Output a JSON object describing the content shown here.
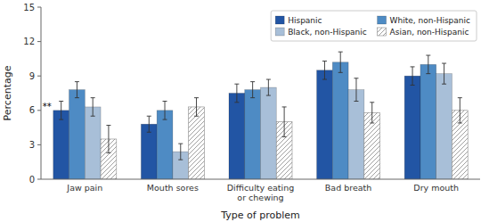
{
  "chart_data": {
    "type": "bar",
    "categories": [
      "Jaw pain",
      "Mouth sores",
      "Difficulty eating\nor chewing",
      "Bad breath",
      "Dry mouth"
    ],
    "series": [
      {
        "name": "Hispanic",
        "color": "#2255a4",
        "values": [
          6.0,
          4.8,
          7.5,
          9.5,
          9.0
        ],
        "errors": [
          0.8,
          0.7,
          0.8,
          0.8,
          0.8
        ]
      },
      {
        "name": "White, non-Hispanic",
        "color": "#4e8bc4",
        "values": [
          7.8,
          6.0,
          7.8,
          10.2,
          10.0
        ],
        "errors": [
          0.7,
          0.8,
          0.7,
          0.9,
          0.8
        ]
      },
      {
        "name": "Black, non-Hispanic",
        "color": "#a8bfd8",
        "values": [
          6.3,
          2.4,
          8.0,
          7.8,
          9.2
        ],
        "errors": [
          0.8,
          0.7,
          0.7,
          1.0,
          0.9
        ]
      },
      {
        "name": "Asian, non-Hispanic",
        "color": "white",
        "values": [
          3.5,
          6.3,
          5.0,
          5.8,
          6.0
        ],
        "errors": [
          1.2,
          0.8,
          1.3,
          0.9,
          1.1
        ]
      }
    ],
    "xlabel": "Type of problem",
    "ylabel": "Percentage",
    "ylim": [
      0,
      15
    ],
    "yticks": [
      0,
      3,
      6,
      9,
      12,
      15
    ],
    "annotation": "**",
    "legend": "upper right",
    "grid": false
  }
}
